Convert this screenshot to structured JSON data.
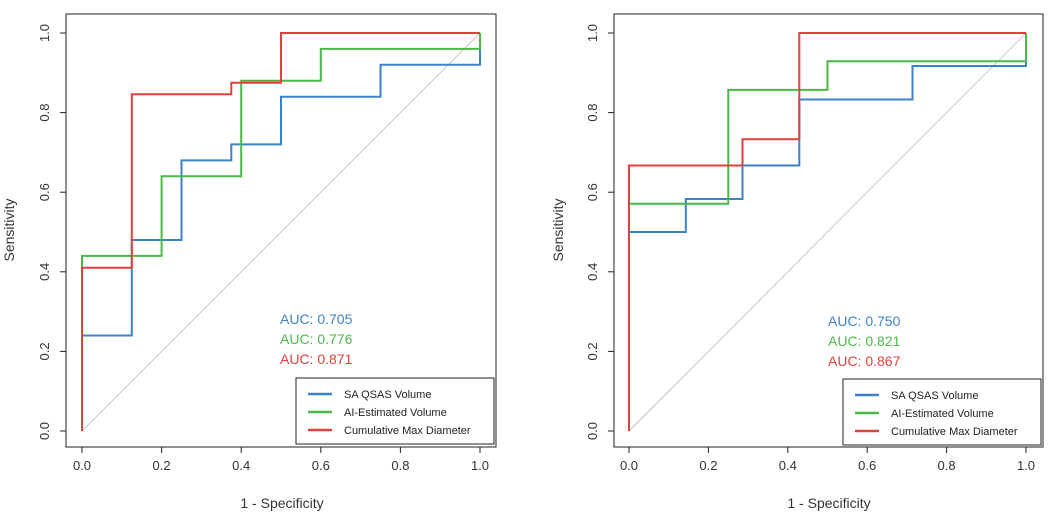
{
  "chart_data": [
    {
      "type": "line",
      "xlabel": "1 - Specificity",
      "ylabel": "Sensitivity",
      "xlim": [
        0,
        1
      ],
      "ylim": [
        0,
        1
      ],
      "xticks": [
        "0.0",
        "0.2",
        "0.4",
        "0.6",
        "0.8",
        "1.0"
      ],
      "yticks": [
        "0.0",
        "0.2",
        "0.4",
        "0.6",
        "0.8",
        "1.0"
      ],
      "grid": false,
      "diagonal_reference": true,
      "legend_position": "bottom-right",
      "series": [
        {
          "name": "SA QSAS Volume",
          "color": "#3c82c8",
          "auc_label": "AUC: 0.705",
          "points": [
            [
              0,
              0
            ],
            [
              0,
              0.24
            ],
            [
              0.125,
              0.24
            ],
            [
              0.125,
              0.48
            ],
            [
              0.25,
              0.48
            ],
            [
              0.25,
              0.68
            ],
            [
              0.375,
              0.68
            ],
            [
              0.375,
              0.72
            ],
            [
              0.5,
              0.72
            ],
            [
              0.5,
              0.84
            ],
            [
              0.75,
              0.84
            ],
            [
              0.75,
              0.92
            ],
            [
              1,
              0.92
            ],
            [
              1,
              1
            ]
          ]
        },
        {
          "name": "AI-Estimated Volume",
          "color": "#4cb848",
          "auc_label": "AUC: 0.776",
          "points": [
            [
              0,
              0
            ],
            [
              0,
              0.44
            ],
            [
              0.2,
              0.44
            ],
            [
              0.2,
              0.64
            ],
            [
              0.4,
              0.64
            ],
            [
              0.4,
              0.88
            ],
            [
              0.6,
              0.88
            ],
            [
              0.6,
              0.96
            ],
            [
              1,
              0.96
            ],
            [
              1,
              1
            ]
          ]
        },
        {
          "name": "Cumulative Max Diameter",
          "color": "#e0413c",
          "auc_label": "AUC: 0.871",
          "points": [
            [
              0,
              0
            ],
            [
              0,
              0.41
            ],
            [
              0.125,
              0.41
            ],
            [
              0.125,
              0.846
            ],
            [
              0.375,
              0.846
            ],
            [
              0.375,
              0.875
            ],
            [
              0.5,
              0.875
            ],
            [
              0.5,
              1
            ],
            [
              1,
              1
            ]
          ]
        }
      ]
    },
    {
      "type": "line",
      "xlabel": "1 - Specificity",
      "ylabel": "Sensitivity",
      "xlim": [
        0,
        1
      ],
      "ylim": [
        0,
        1
      ],
      "xticks": [
        "0.0",
        "0.2",
        "0.4",
        "0.6",
        "0.8",
        "1.0"
      ],
      "yticks": [
        "0.0",
        "0.2",
        "0.4",
        "0.6",
        "0.8",
        "1.0"
      ],
      "grid": false,
      "diagonal_reference": true,
      "legend_position": "bottom-right",
      "series": [
        {
          "name": "SA QSAS Volume",
          "color": "#3c82c8",
          "auc_label": "AUC: 0.750",
          "points": [
            [
              0,
              0
            ],
            [
              0,
              0.5
            ],
            [
              0.143,
              0.5
            ],
            [
              0.143,
              0.583
            ],
            [
              0.286,
              0.583
            ],
            [
              0.286,
              0.667
            ],
            [
              0.429,
              0.667
            ],
            [
              0.429,
              0.833
            ],
            [
              0.714,
              0.833
            ],
            [
              0.714,
              0.917
            ],
            [
              1,
              0.917
            ],
            [
              1,
              1
            ]
          ]
        },
        {
          "name": "AI-Estimated Volume",
          "color": "#4cb848",
          "auc_label": "AUC: 0.821",
          "points": [
            [
              0,
              0
            ],
            [
              0,
              0.571
            ],
            [
              0.25,
              0.571
            ],
            [
              0.25,
              0.857
            ],
            [
              0.5,
              0.857
            ],
            [
              0.5,
              0.929
            ],
            [
              1,
              0.929
            ],
            [
              1,
              1
            ]
          ]
        },
        {
          "name": "Cumulative Max Diameter",
          "color": "#e0413c",
          "auc_label": "AUC: 0.867",
          "points": [
            [
              0,
              0
            ],
            [
              0,
              0.667
            ],
            [
              0.286,
              0.667
            ],
            [
              0.286,
              0.733
            ],
            [
              0.429,
              0.733
            ],
            [
              0.429,
              1
            ],
            [
              1,
              1
            ]
          ]
        }
      ]
    }
  ]
}
